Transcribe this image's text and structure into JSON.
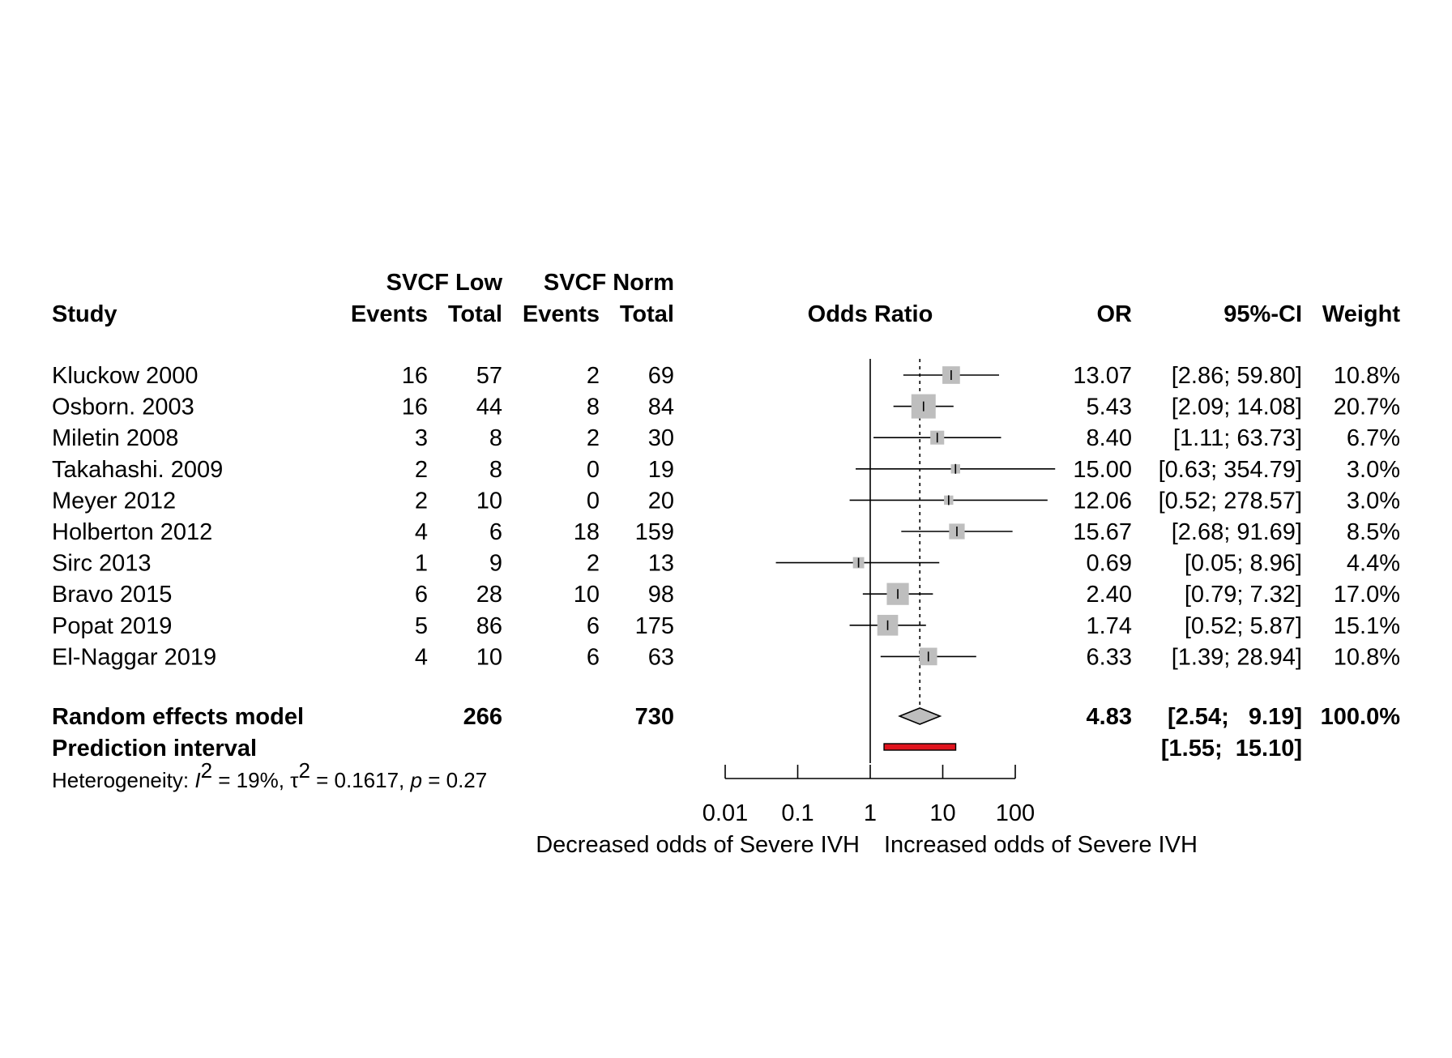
{
  "chart_data": {
    "type": "forest",
    "header": {
      "study": "Study",
      "group1": "SVCF Low",
      "group2": "SVCF Norm",
      "events": "Events",
      "total": "Total",
      "plot_title": "Odds Ratio",
      "or": "OR",
      "ci": "95%-CI",
      "weight": "Weight"
    },
    "studies": [
      {
        "name": "Kluckow  2000",
        "e1": "16",
        "n1": "57",
        "e2": "2",
        "n2": "69",
        "or": 13.07,
        "lo": 2.86,
        "hi": 59.8,
        "or_text": "13.07",
        "ci_text": "[2.86;  59.80]",
        "w_text": "10.8%",
        "weight": 10.8
      },
      {
        "name": "Osborn. 2003",
        "e1": "16",
        "n1": "44",
        "e2": "8",
        "n2": "84",
        "or": 5.43,
        "lo": 2.09,
        "hi": 14.08,
        "or_text": "5.43",
        "ci_text": "[2.09;  14.08]",
        "w_text": "20.7%",
        "weight": 20.7
      },
      {
        "name": "Miletin  2008",
        "e1": "3",
        "n1": "8",
        "e2": "2",
        "n2": "30",
        "or": 8.4,
        "lo": 1.11,
        "hi": 63.73,
        "or_text": "8.40",
        "ci_text": "[1.11;  63.73]",
        "w_text": "6.7%",
        "weight": 6.7
      },
      {
        "name": "Takahashi. 2009",
        "e1": "2",
        "n1": "8",
        "e2": "0",
        "n2": "19",
        "or": 15.0,
        "lo": 0.63,
        "hi": 354.79,
        "or_text": "15.00",
        "ci_text": "[0.63; 354.79]",
        "w_text": "3.0%",
        "weight": 3.0
      },
      {
        "name": "Meyer  2012",
        "e1": "2",
        "n1": "10",
        "e2": "0",
        "n2": "20",
        "or": 12.06,
        "lo": 0.52,
        "hi": 278.57,
        "or_text": "12.06",
        "ci_text": "[0.52; 278.57]",
        "w_text": "3.0%",
        "weight": 3.0
      },
      {
        "name": "Holberton  2012",
        "e1": "4",
        "n1": "6",
        "e2": "18",
        "n2": "159",
        "or": 15.67,
        "lo": 2.68,
        "hi": 91.69,
        "or_text": "15.67",
        "ci_text": "[2.68;  91.69]",
        "w_text": "8.5%",
        "weight": 8.5
      },
      {
        "name": "Sirc  2013",
        "e1": "1",
        "n1": "9",
        "e2": "2",
        "n2": "13",
        "or": 0.69,
        "lo": 0.05,
        "hi": 8.96,
        "or_text": "0.69",
        "ci_text": "[0.05;   8.96]",
        "w_text": "4.4%",
        "weight": 4.4
      },
      {
        "name": "Bravo  2015",
        "e1": "6",
        "n1": "28",
        "e2": "10",
        "n2": "98",
        "or": 2.4,
        "lo": 0.79,
        "hi": 7.32,
        "or_text": "2.40",
        "ci_text": "[0.79;   7.32]",
        "w_text": "17.0%",
        "weight": 17.0
      },
      {
        "name": "Popat  2019",
        "e1": "5",
        "n1": "86",
        "e2": "6",
        "n2": "175",
        "or": 1.74,
        "lo": 0.52,
        "hi": 5.87,
        "or_text": "1.74",
        "ci_text": "[0.52;   5.87]",
        "w_text": "15.1%",
        "weight": 15.1
      },
      {
        "name": "El-Naggar  2019",
        "e1": "4",
        "n1": "10",
        "e2": "6",
        "n2": "63",
        "or": 6.33,
        "lo": 1.39,
        "hi": 28.94,
        "or_text": "6.33",
        "ci_text": "[1.39;  28.94]",
        "w_text": "10.8%",
        "weight": 10.8
      }
    ],
    "random_effects": {
      "label": "Random effects model",
      "n1": "266",
      "n2": "730",
      "or": 4.83,
      "lo": 2.54,
      "hi": 9.19,
      "or_text": "4.83",
      "ci_text": "[2.54;   9.19]",
      "w_text": "100.0%"
    },
    "prediction": {
      "label": "Prediction interval",
      "lo": 1.55,
      "hi": 15.1,
      "ci_text": "[1.55;  15.10]"
    },
    "heterogeneity": {
      "prefix": "Heterogeneity: ",
      "i2_symbol": "I",
      "i2_value": " = 19%, ",
      "tau_symbol": "τ",
      "tau_value": " = 0.1617, ",
      "p_symbol": "p",
      "p_value": " = 0.27",
      "sup": "2"
    },
    "x_axis": {
      "scale": "log",
      "ticks": [
        0.01,
        0.1,
        1,
        10,
        100
      ],
      "tick_labels": [
        "0.01",
        "0.1",
        "1",
        "10",
        "100"
      ],
      "reference_line": 1,
      "left_label": "Decreased odds of Severe IVH",
      "right_label": "Increased odds of Severe IVH"
    },
    "colors": {
      "square": "#bebebe",
      "diamond": "#bebebe",
      "prediction": "#e0141e",
      "line": "#000000"
    }
  }
}
